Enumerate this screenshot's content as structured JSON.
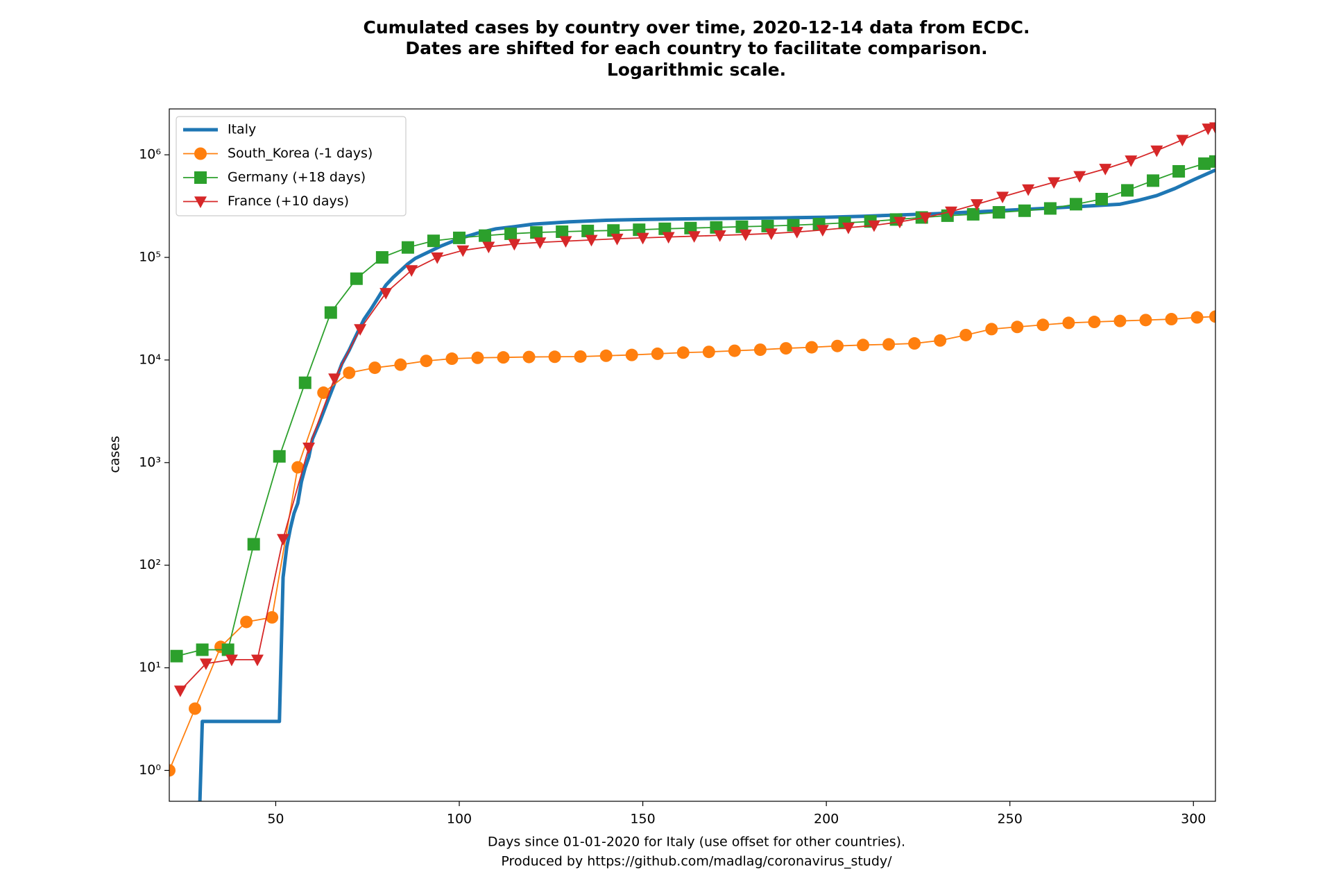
{
  "chart_data": {
    "type": "line",
    "title": "Cumulated cases by country over time, 2020-12-14 data from ECDC.",
    "subtitle": [
      "Dates are shifted for each country to facilitate comparison.",
      "Logarithmic scale."
    ],
    "x_label": [
      "Days since 01-01-2020 for Italy (use offset for other countries).",
      "Produced by https://github.com/madlag/coronavirus_study/"
    ],
    "y_label": "cases",
    "log_y": true,
    "legend": "upper-left",
    "xlim": [
      21,
      306
    ],
    "xticks": [
      50,
      100,
      150,
      200,
      250,
      300
    ],
    "ylim": [
      0.5,
      2800000
    ],
    "yticks": [
      {
        "value": 1,
        "label": "10⁰"
      },
      {
        "value": 10,
        "label": "10¹"
      },
      {
        "value": 100,
        "label": "10²"
      },
      {
        "value": 1000,
        "label": "10³"
      },
      {
        "value": 10000,
        "label": "10⁴"
      },
      {
        "value": 100000,
        "label": "10⁵"
      },
      {
        "value": 1000000,
        "label": "10⁶"
      }
    ],
    "series": [
      {
        "name": "Italy",
        "color": "#1f77b4",
        "marker": "none",
        "linewidth": 5,
        "x": [
          21,
          29,
          30,
          51,
          52,
          53,
          54,
          55,
          56,
          57,
          58,
          59,
          60,
          62,
          64,
          66,
          68,
          70,
          72,
          74,
          76,
          78,
          80,
          82,
          84,
          86,
          88,
          90,
          95,
          100,
          105,
          110,
          115,
          120,
          130,
          140,
          150,
          160,
          170,
          180,
          190,
          200,
          210,
          220,
          230,
          240,
          250,
          260,
          270,
          280,
          285,
          290,
          295,
          300,
          306
        ],
        "values": [
          0,
          0,
          3,
          3,
          76,
          150,
          229,
          322,
          400,
          650,
          888,
          1128,
          1694,
          2502,
          3858,
          5883,
          9172,
          12462,
          17660,
          24747,
          31506,
          41035,
          53578,
          63927,
          74386,
          86498,
          97689,
          105792,
          128948,
          152271,
          172434,
          189973,
          199414,
          210717,
          222104,
          230158,
          234013,
          236989,
          239410,
          241184,
          243506,
          246286,
          251713,
          259345,
          267000,
          277000,
          289000,
          301000,
          315000,
          330000,
          360000,
          400000,
          470000,
          570000,
          710000
        ]
      },
      {
        "name": "South_Korea (-1 days)",
        "color": "#ff7f0e",
        "marker": "circle",
        "linewidth": 1.8,
        "x": [
          21,
          28,
          35,
          42,
          49,
          56,
          63,
          70,
          77,
          84,
          91,
          98,
          105,
          112,
          119,
          126,
          133,
          140,
          147,
          154,
          161,
          168,
          175,
          182,
          189,
          196,
          203,
          210,
          217,
          224,
          231,
          238,
          245,
          252,
          259,
          266,
          273,
          280,
          287,
          294,
          301,
          306
        ],
        "values": [
          1,
          4,
          16,
          28,
          31,
          900,
          4800,
          7500,
          8400,
          9000,
          9800,
          10300,
          10500,
          10600,
          10700,
          10750,
          10800,
          11000,
          11200,
          11500,
          11800,
          12000,
          12300,
          12600,
          13000,
          13300,
          13700,
          14000,
          14200,
          14500,
          15500,
          17500,
          20000,
          21000,
          22000,
          23000,
          23500,
          24000,
          24500,
          25000,
          26000,
          26500
        ]
      },
      {
        "name": "Germany (+18 days)",
        "color": "#2ca02c",
        "marker": "square",
        "linewidth": 1.8,
        "x": [
          23,
          30,
          37,
          44,
          51,
          58,
          65,
          72,
          79,
          86,
          93,
          100,
          107,
          114,
          121,
          128,
          135,
          142,
          149,
          156,
          163,
          170,
          177,
          184,
          191,
          198,
          205,
          212,
          219,
          226,
          233,
          240,
          247,
          254,
          261,
          268,
          275,
          282,
          289,
          296,
          303,
          306
        ],
        "values": [
          13,
          15,
          15,
          160,
          1150,
          6000,
          29000,
          62000,
          100000,
          125000,
          145000,
          155000,
          163000,
          170000,
          175000,
          178000,
          181000,
          183000,
          186000,
          190000,
          193000,
          196000,
          199000,
          202000,
          206000,
          211000,
          217000,
          224000,
          234000,
          245000,
          255000,
          263000,
          275000,
          285000,
          300000,
          330000,
          370000,
          450000,
          560000,
          690000,
          820000,
          860000
        ]
      },
      {
        "name": "France (+10 days)",
        "color": "#d62728",
        "marker": "triangle-down",
        "linewidth": 1.8,
        "x": [
          24,
          31,
          38,
          45,
          52,
          59,
          66,
          73,
          80,
          87,
          94,
          101,
          108,
          115,
          122,
          129,
          136,
          143,
          150,
          157,
          164,
          171,
          178,
          185,
          192,
          199,
          206,
          213,
          220,
          227,
          234,
          241,
          248,
          255,
          262,
          269,
          276,
          283,
          290,
          297,
          304,
          306
        ],
        "values": [
          6,
          11,
          12,
          12,
          180,
          1400,
          6600,
          20000,
          45000,
          75000,
          100000,
          117000,
          127000,
          135000,
          140000,
          144000,
          148000,
          152000,
          155000,
          158000,
          161000,
          164000,
          167000,
          171000,
          177000,
          185000,
          195000,
          205000,
          222000,
          245000,
          280000,
          330000,
          390000,
          460000,
          540000,
          620000,
          730000,
          880000,
          1100000,
          1400000,
          1800000,
          1850000
        ]
      }
    ]
  }
}
